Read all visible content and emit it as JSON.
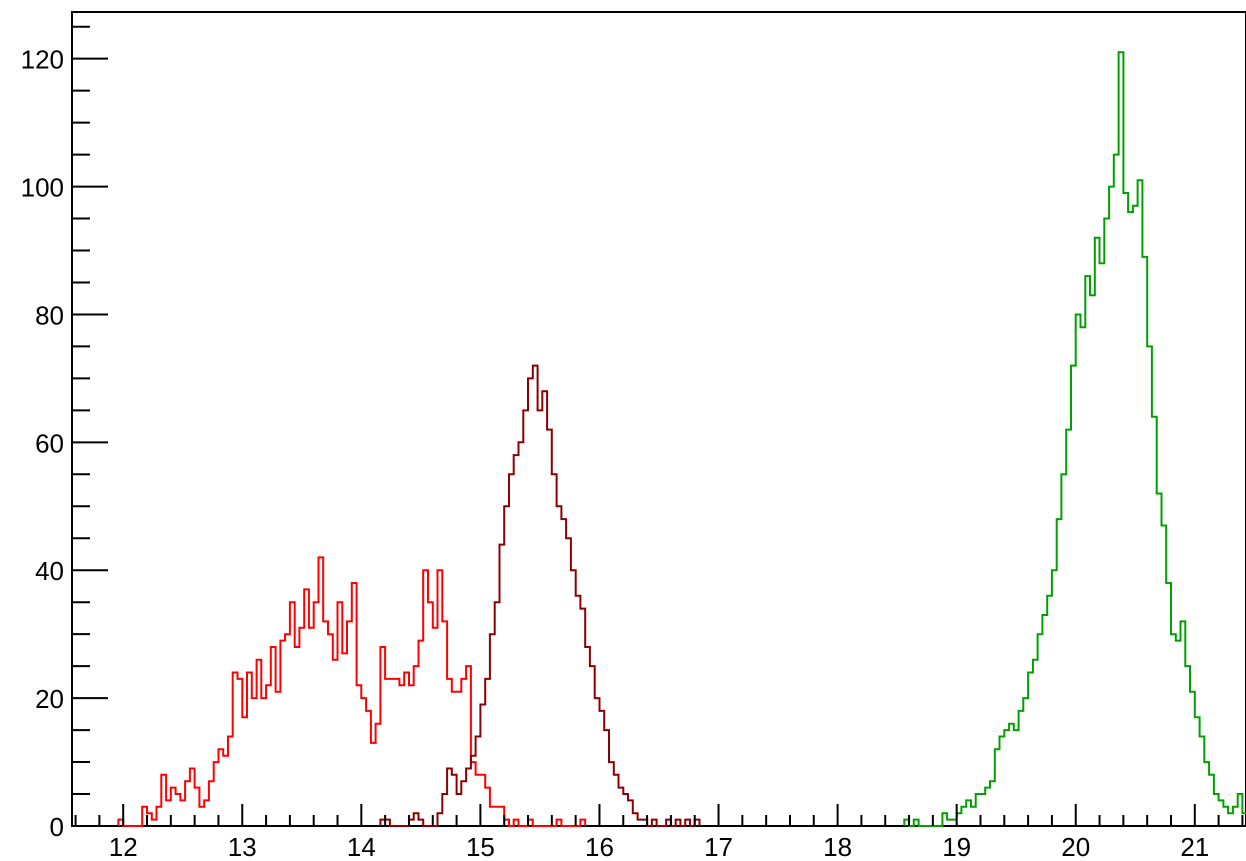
{
  "chart_data": {
    "type": "histogram",
    "title": "",
    "xlabel": "",
    "ylabel": "",
    "xlim": [
      11.57,
      21.43
    ],
    "ylim": [
      0,
      127.3
    ],
    "bin_width": 0.04,
    "grid": false,
    "legend": "none",
    "x_ticks": [
      {
        "value": 12,
        "label": "12"
      },
      {
        "value": 13,
        "label": "13"
      },
      {
        "value": 14,
        "label": "14"
      },
      {
        "value": 15,
        "label": "15"
      },
      {
        "value": 16,
        "label": "16"
      },
      {
        "value": 17,
        "label": "17"
      },
      {
        "value": 18,
        "label": "18"
      },
      {
        "value": 19,
        "label": "19"
      },
      {
        "value": 20,
        "label": "20"
      },
      {
        "value": 21,
        "label": "21"
      }
    ],
    "y_ticks": [
      {
        "value": 0,
        "label": "0"
      },
      {
        "value": 20,
        "label": "20"
      },
      {
        "value": 40,
        "label": "40"
      },
      {
        "value": 60,
        "label": "60"
      },
      {
        "value": 80,
        "label": "80"
      },
      {
        "value": 100,
        "label": "100"
      },
      {
        "value": 120,
        "label": "120"
      }
    ],
    "series": [
      {
        "color": "#ff0000",
        "start": 11.96,
        "counts": [
          1,
          0,
          0,
          0,
          0,
          3,
          2,
          1,
          3,
          8,
          4,
          6,
          5,
          4,
          7,
          9,
          6,
          3,
          4,
          7,
          10,
          12,
          11,
          14,
          24,
          23,
          17,
          24,
          20,
          26,
          20,
          22,
          28,
          21,
          29,
          30,
          35,
          28,
          31,
          37,
          31,
          35,
          42,
          32,
          30,
          26,
          35,
          27,
          32,
          38,
          22,
          20,
          18,
          13,
          16,
          28,
          23,
          23,
          23,
          22,
          24,
          22,
          25,
          29,
          40,
          35,
          31,
          40,
          32,
          23,
          21,
          21,
          23,
          25,
          10,
          8,
          8,
          6,
          3,
          3,
          3,
          1,
          0,
          1,
          0,
          0,
          1,
          0,
          0,
          0,
          0,
          0,
          1,
          0,
          0,
          0,
          0,
          1
        ]
      },
      {
        "color": "#8b0000",
        "start": 14.16,
        "counts": [
          1,
          1,
          0,
          0,
          0,
          0,
          1,
          2,
          1,
          0,
          0,
          0,
          2,
          5,
          9,
          8,
          5,
          7,
          9,
          11,
          14,
          19,
          23,
          30,
          35,
          44,
          50,
          55,
          58,
          60,
          65,
          70,
          72,
          65,
          68,
          62,
          55,
          50,
          48,
          45,
          40,
          36,
          34,
          28,
          25,
          20,
          18,
          15,
          10,
          8,
          6,
          5,
          4,
          2,
          1,
          1,
          0,
          1,
          0,
          0,
          1,
          0,
          1,
          0,
          1,
          0,
          1
        ]
      },
      {
        "color": "#00a000",
        "start": 18.56,
        "counts": [
          1,
          0,
          1,
          0,
          0,
          0,
          0,
          0,
          2,
          1,
          1,
          2,
          3,
          4,
          3,
          5,
          5,
          6,
          7,
          12,
          14,
          15,
          16,
          15,
          18,
          20,
          24,
          26,
          30,
          33,
          36,
          40,
          48,
          55,
          62,
          72,
          80,
          78,
          86,
          83,
          92,
          88,
          95,
          100,
          105,
          121,
          99,
          96,
          97,
          101,
          89,
          75,
          64,
          52,
          47,
          38,
          30,
          29,
          32,
          25,
          21,
          17,
          14,
          10,
          8,
          5,
          4,
          3,
          2,
          3,
          5,
          2,
          3,
          4,
          1,
          2,
          0,
          1,
          1,
          0,
          1
        ]
      }
    ]
  }
}
